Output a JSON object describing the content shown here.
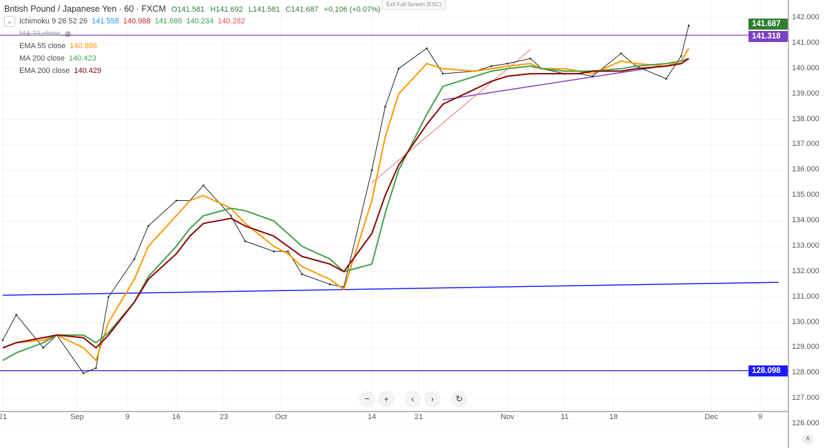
{
  "header": {
    "symbol": "British Pound / Japanese Yen · 60 · FXCM",
    "open": "O141.581",
    "high": "H141.692",
    "low": "L141.581",
    "close": "C141.687",
    "change": "+0.106 (+0.07%)",
    "exit_fullscreen": "Exit Full Screen (ESC)"
  },
  "indicators": [
    {
      "label": "Ichimoku 9 26 52 26",
      "values": [
        {
          "v": "141.558",
          "color": "#2196f3"
        },
        {
          "v": "140.988",
          "color": "#c62828"
        },
        {
          "v": "141.688",
          "color": "#43a047"
        },
        {
          "v": "140.234",
          "color": "#43a047"
        },
        {
          "v": "140.282",
          "color": "#ef5350"
        }
      ]
    },
    {
      "label": "MA 21 close",
      "hidden": true
    },
    {
      "label": "EMA 55 close",
      "value": "140.886",
      "color": "#ff9800"
    },
    {
      "label": "MA 200 close",
      "value": "140.423",
      "color": "#43a047"
    },
    {
      "label": "EMA 200 close",
      "value": "140.429",
      "color": "#8b0000"
    }
  ],
  "controls": {
    "zoom_out": "−",
    "zoom_in": "+",
    "scroll_left": "‹",
    "scroll_right": "›",
    "reset": "↻",
    "auto_scale": "A"
  },
  "chart_data": {
    "type": "line",
    "ylim": [
      126,
      142
    ],
    "yticks": [
      "142.000",
      "141.000",
      "140.000",
      "139.000",
      "138.000",
      "137.000",
      "136.000",
      "135.000",
      "134.000",
      "133.000",
      "132.000",
      "131.000",
      "130.000",
      "129.000",
      "128.000",
      "127.000",
      "126.000"
    ],
    "xticks": [
      "21",
      "Sep",
      "9",
      "16",
      "23",
      "Oct",
      "14",
      "21",
      "Nov",
      "11",
      "18",
      "Dec",
      "9"
    ],
    "price_labels": [
      {
        "value": "141.687",
        "color": "#2e7d32"
      },
      {
        "value": "141.318",
        "color": "#7b3fc4"
      },
      {
        "value": "128.098",
        "color": "#1a1aff"
      }
    ],
    "x": [
      "2019-08-21",
      "2019-08-23",
      "2019-08-27",
      "2019-08-29",
      "2019-09-02",
      "2019-09-04",
      "2019-09-06",
      "2019-09-10",
      "2019-09-12",
      "2019-09-16",
      "2019-09-18",
      "2019-09-20",
      "2019-09-24",
      "2019-09-26",
      "2019-09-30",
      "2019-10-02",
      "2019-10-04",
      "2019-10-08",
      "2019-10-10",
      "2019-10-14",
      "2019-10-16",
      "2019-10-18",
      "2019-10-22",
      "2019-10-24",
      "2019-10-28",
      "2019-10-30",
      "2019-11-01",
      "2019-11-05",
      "2019-11-07",
      "2019-11-11",
      "2019-11-13",
      "2019-11-15",
      "2019-11-19",
      "2019-11-21",
      "2019-11-25",
      "2019-11-27",
      "2019-11-28"
    ],
    "series": [
      {
        "name": "GBP/JPY",
        "color": "#222222",
        "values": [
          129.3,
          130.3,
          129.0,
          129.5,
          128.0,
          128.2,
          131.0,
          132.5,
          133.8,
          134.8,
          134.8,
          135.4,
          134.2,
          133.2,
          132.8,
          132.8,
          131.9,
          131.5,
          131.4,
          136.0,
          138.5,
          140.0,
          140.8,
          139.8,
          139.9,
          140.1,
          140.2,
          140.4,
          140.0,
          139.8,
          139.8,
          139.7,
          140.6,
          140.1,
          139.6,
          140.5,
          141.7
        ]
      },
      {
        "name": "EMA 55 close",
        "color": "#ff9800",
        "values": [
          129.0,
          129.2,
          129.3,
          129.5,
          129.0,
          128.5,
          130.0,
          131.7,
          133.0,
          134.2,
          134.8,
          135.0,
          134.5,
          133.9,
          133.0,
          132.7,
          132.2,
          131.7,
          131.3,
          134.8,
          137.3,
          139.0,
          140.2,
          140.0,
          139.9,
          140.0,
          140.1,
          140.2,
          140.0,
          140.0,
          139.9,
          139.8,
          140.3,
          140.2,
          140.1,
          140.3,
          140.8
        ]
      },
      {
        "name": "MA 200 close",
        "color": "#43a047",
        "values": [
          128.5,
          128.8,
          129.2,
          129.5,
          129.5,
          129.2,
          129.6,
          130.8,
          131.8,
          133.0,
          133.7,
          134.2,
          134.5,
          134.4,
          134.0,
          133.5,
          133.0,
          132.5,
          132.0,
          132.3,
          134.3,
          136.0,
          138.2,
          139.3,
          139.7,
          139.9,
          140.0,
          140.1,
          140.0,
          139.9,
          139.9,
          139.9,
          140.0,
          140.1,
          140.2,
          140.3,
          140.4
        ]
      },
      {
        "name": "EMA 200 close",
        "color": "#8b0000",
        "values": [
          129.0,
          129.2,
          129.4,
          129.5,
          129.4,
          129.0,
          129.5,
          130.8,
          131.7,
          132.7,
          133.4,
          133.9,
          134.1,
          133.8,
          133.4,
          133.0,
          132.6,
          132.3,
          132.0,
          133.5,
          135.0,
          136.2,
          137.8,
          138.6,
          139.2,
          139.5,
          139.7,
          139.8,
          139.8,
          139.8,
          139.8,
          139.9,
          139.9,
          140.0,
          140.1,
          140.2,
          140.4
        ]
      }
    ],
    "horizontal_lines": [
      {
        "value": 141.318,
        "color": "#7b3fc4"
      },
      {
        "value": 128.098,
        "color": "#1a1aff"
      }
    ],
    "trend_lines": [
      {
        "from": [
          "2019-08-21",
          131.07
        ],
        "to": [
          "2019-12-12",
          131.58
        ],
        "color": "#1a1aff"
      },
      {
        "from": [
          "2019-10-24",
          138.77
        ],
        "to": [
          "2019-11-27",
          140.21
        ],
        "color": "#7b3fc4"
      },
      {
        "from": [
          "2019-10-14",
          135.5
        ],
        "to": [
          "2019-11-05",
          140.75
        ],
        "color": "#e57368"
      }
    ],
    "grid": true
  }
}
